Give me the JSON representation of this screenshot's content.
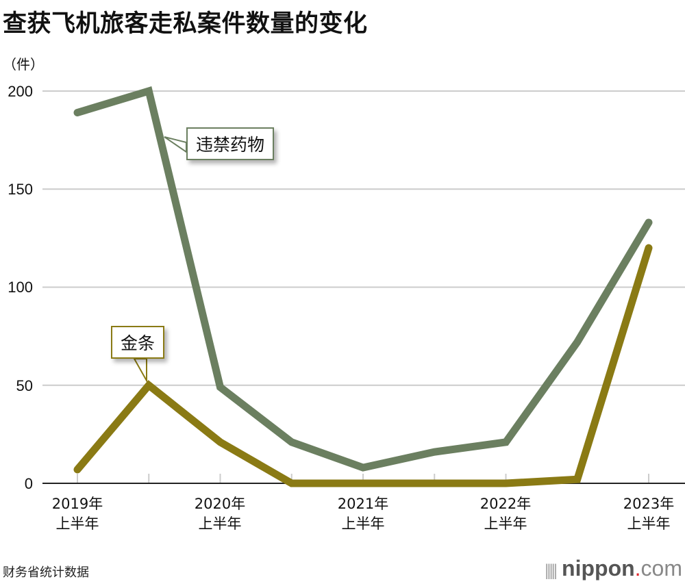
{
  "header": {
    "title": "查获飞机旅客走私案件数量的变化",
    "unit": "（件）"
  },
  "footer": {
    "source": "财务省统计数据",
    "logo": {
      "name": "nippon",
      "dot": ".",
      "suffix": "com"
    }
  },
  "axis": {
    "y_ticks": [
      "200",
      "150",
      "100",
      "50",
      "0"
    ],
    "x_ticks": [
      {
        "year": "2019年",
        "half": "上半年"
      },
      {
        "year": "2020年",
        "half": "上半年"
      },
      {
        "year": "2021年",
        "half": "上半年"
      },
      {
        "year": "2022年",
        "half": "上半年"
      },
      {
        "year": "2023年",
        "half": "上半年"
      }
    ]
  },
  "labels": {
    "drugs": "违禁药物",
    "gold": "金条"
  },
  "colors": {
    "drugs": "#6b7f60",
    "gold": "#8a7a14",
    "grid": "#cccccc",
    "axis": "#222222"
  },
  "chart_data": {
    "type": "line",
    "title": "查获飞机旅客走私案件数量的变化",
    "xlabel": "",
    "ylabel": "（件）",
    "ylim": [
      0,
      200
    ],
    "grid": true,
    "x": [
      "2019年上半年",
      "2019年下半年",
      "2020年上半年",
      "2020年下半年",
      "2021年上半年",
      "2021年下半年",
      "2022年上半年",
      "2022年下半年",
      "2023年上半年"
    ],
    "series": [
      {
        "name": "违禁药物",
        "color": "#6b7f60",
        "values": [
          189,
          200,
          49,
          21,
          8,
          16,
          21,
          72,
          133
        ]
      },
      {
        "name": "金条",
        "color": "#8a7a14",
        "values": [
          7,
          50,
          21,
          0,
          0,
          0,
          0,
          2,
          120
        ]
      }
    ],
    "legend": "inline callouts",
    "source": "财务省统计数据"
  }
}
